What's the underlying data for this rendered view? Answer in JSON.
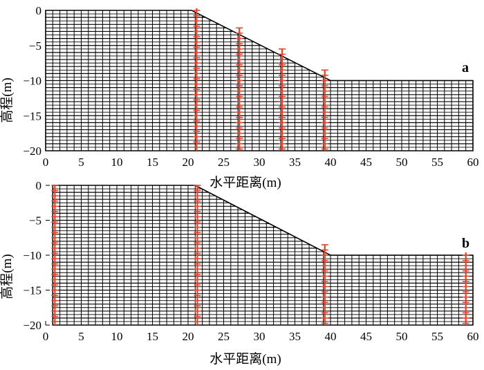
{
  "xaxis": {
    "label": "水平距离(m)",
    "range": [
      0,
      60
    ],
    "ticks": [
      0,
      5,
      10,
      15,
      20,
      25,
      30,
      35,
      40,
      45,
      50,
      55,
      60
    ]
  },
  "yaxis": {
    "label": "高程(m)",
    "range": [
      -20,
      0
    ],
    "ticks": [
      0,
      -5,
      -10,
      -15,
      -20
    ]
  },
  "colors": {
    "grid": "#000000",
    "pile": "#e8402a"
  },
  "panels": [
    {
      "tag": "a",
      "geometry": {
        "crest": [
          [
            0,
            0
          ],
          [
            20.5,
            0
          ]
        ],
        "slope_toe": [
          40,
          -10
        ],
        "right_end": [
          60,
          -10
        ],
        "bottom": -20
      },
      "cell": {
        "dx": 1.0,
        "dy": 1.0
      },
      "piles": [
        {
          "x": 21.2,
          "top": 0.3
        },
        {
          "x": 27.2,
          "top": -2.5
        },
        {
          "x": 33.2,
          "top": -5.5
        },
        {
          "x": 39.2,
          "top": -8.5
        }
      ]
    },
    {
      "tag": "b",
      "geometry": {
        "crest": [
          [
            1,
            0
          ],
          [
            21,
            0
          ]
        ],
        "slope_toe": [
          40,
          -10
        ],
        "right_end": [
          60,
          -10
        ],
        "bottom": -20
      },
      "cell": {
        "dx": 1.0,
        "dy": 1.0
      },
      "piles": [
        {
          "x": 1.3,
          "top": 0
        },
        {
          "x": 21.3,
          "top": 0
        },
        {
          "x": 39.2,
          "top": -8.5
        },
        {
          "x": 59.0,
          "top": -9.6
        }
      ]
    }
  ]
}
